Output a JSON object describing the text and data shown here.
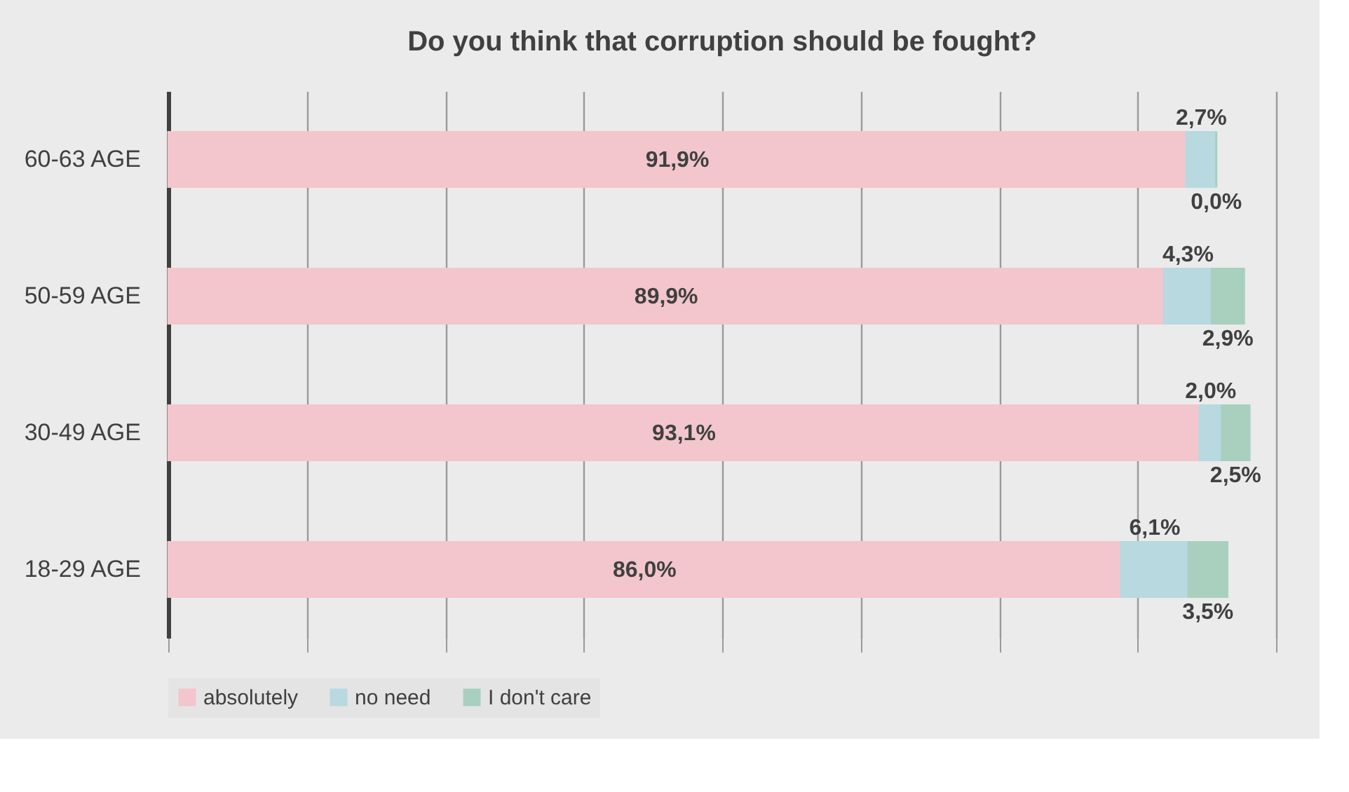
{
  "chart_data": {
    "type": "bar",
    "orientation": "horizontal",
    "stacked": true,
    "title": "Do you think that corruption should be fought?",
    "categories": [
      "60-63 AGE",
      "50-59 AGE",
      "30-49 AGE",
      "18-29 AGE"
    ],
    "series": [
      {
        "name": "absolutely",
        "color": "#f2c6cc",
        "values": [
          91.9,
          89.9,
          93.1,
          86.0
        ],
        "value_labels": [
          "91,9%",
          "89,9%",
          "93,1%",
          "86,0%"
        ]
      },
      {
        "name": "no need",
        "color": "#b7d9df",
        "values": [
          2.7,
          4.3,
          2.0,
          6.1
        ],
        "value_labels": [
          "2,7%",
          "4,3%",
          "2,0%",
          "6,1%"
        ]
      },
      {
        "name": "I don't care",
        "color": "#a9cfbf",
        "values": [
          0.0,
          2.9,
          2.5,
          3.5
        ],
        "value_labels": [
          "0,0%",
          "2,9%",
          "2,5%",
          "3,5%"
        ]
      }
    ],
    "xlim": [
      0,
      100
    ],
    "xticks": [
      {
        "value": 0,
        "label": null
      },
      {
        "value": 12.5,
        "label": null
      },
      {
        "value": 25,
        "label": null
      },
      {
        "value": 37.5,
        "label": null
      },
      {
        "value": 50,
        "label": null
      },
      {
        "value": 62.5,
        "label": null
      },
      {
        "value": 75,
        "label": null
      },
      {
        "value": 87.5,
        "label": null
      },
      {
        "value": 100,
        "label": null
      }
    ],
    "grid": "x",
    "legend": "bottom",
    "tick_labels": "y"
  }
}
